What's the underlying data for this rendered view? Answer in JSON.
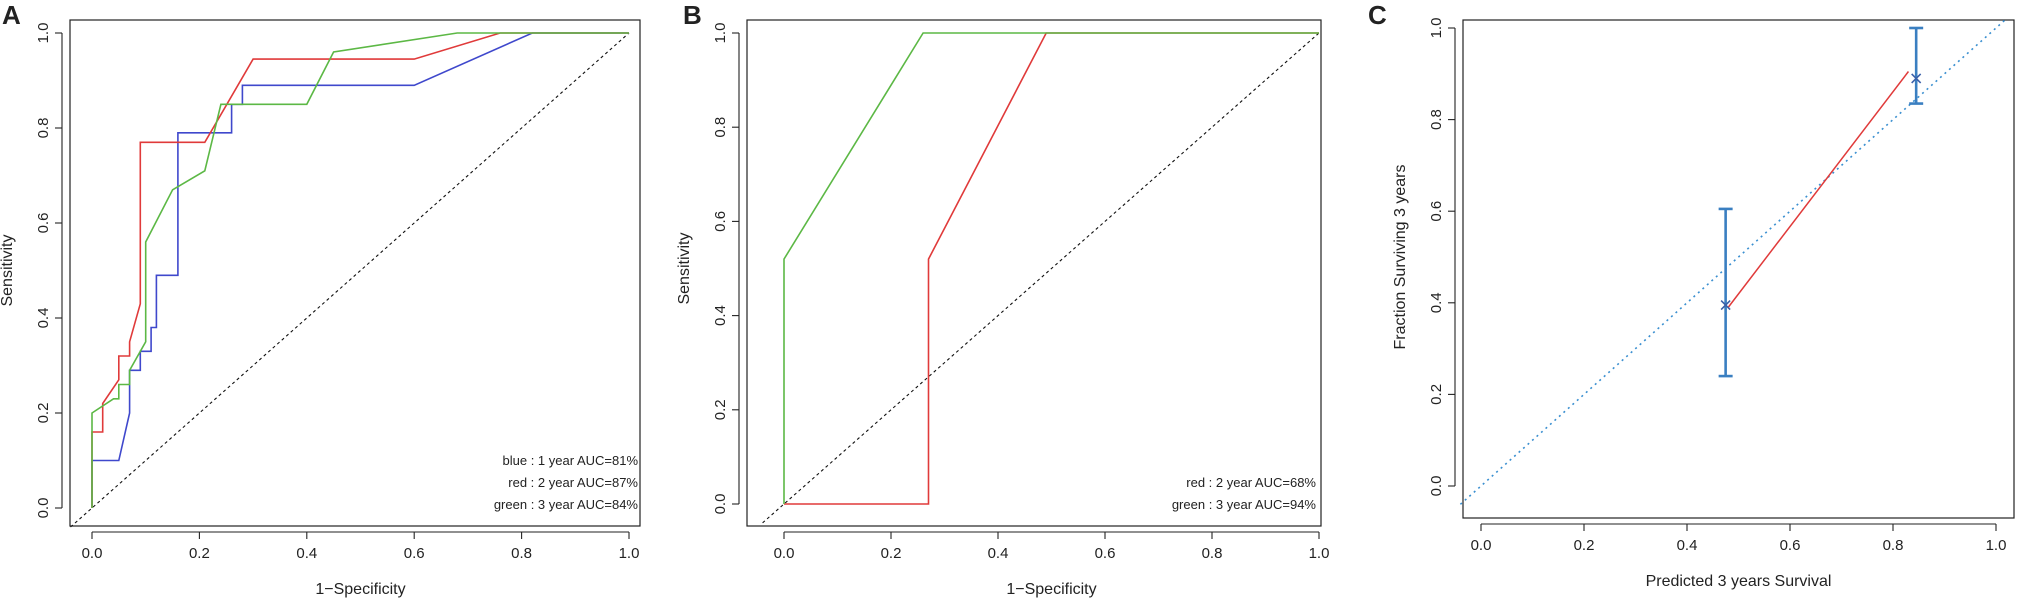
{
  "chart_data": [
    {
      "panel": "A",
      "type": "line",
      "xlabel": "1−Specificity",
      "ylabel": "Sensitivity",
      "xlim": [
        0,
        1
      ],
      "ylim": [
        0,
        1
      ],
      "xticks": [
        "0.0",
        "0.2",
        "0.4",
        "0.6",
        "0.8",
        "1.0"
      ],
      "yticks": [
        "0.0",
        "0.2",
        "0.4",
        "0.6",
        "0.8",
        "1.0"
      ],
      "grid": false,
      "legend_position": "bottom-right",
      "diagonal_reference": true,
      "legend": [
        "blue : 1 year AUC=81%",
        "red : 2 year AUC=87%",
        "green : 3 year AUC=84%"
      ],
      "series": [
        {
          "color": "#3f48cc",
          "x": [
            0,
            0,
            0.05,
            0.07,
            0.07,
            0.09,
            0.09,
            0.11,
            0.11,
            0.12,
            0.12,
            0.16,
            0.16,
            0.26,
            0.26,
            0.28,
            0.28,
            0.6,
            0.82,
            0.82,
            1
          ],
          "y": [
            0,
            0.1,
            0.1,
            0.2,
            0.29,
            0.29,
            0.33,
            0.33,
            0.38,
            0.38,
            0.49,
            0.49,
            0.79,
            0.79,
            0.85,
            0.85,
            0.89,
            0.89,
            1.0,
            1.0,
            1.0
          ]
        },
        {
          "color": "#e03a3a",
          "x": [
            0,
            0,
            0.02,
            0.02,
            0.05,
            0.05,
            0.07,
            0.07,
            0.09,
            0.09,
            0.21,
            0.3,
            0.6,
            0.76,
            1
          ],
          "y": [
            0,
            0.16,
            0.16,
            0.22,
            0.27,
            0.32,
            0.32,
            0.35,
            0.43,
            0.77,
            0.77,
            0.945,
            0.945,
            1.0,
            1.0
          ]
        },
        {
          "color": "#5cb845",
          "x": [
            0,
            0,
            0.04,
            0.05,
            0.05,
            0.07,
            0.07,
            0.1,
            0.1,
            0.15,
            0.21,
            0.24,
            0.4,
            0.45,
            0.68,
            1
          ],
          "y": [
            0,
            0.2,
            0.23,
            0.23,
            0.26,
            0.26,
            0.29,
            0.35,
            0.56,
            0.67,
            0.71,
            0.85,
            0.85,
            0.96,
            1.0,
            1.0
          ]
        }
      ]
    },
    {
      "panel": "B",
      "type": "line",
      "xlabel": "1−Specificity",
      "ylabel": "Sensitivity",
      "xlim": [
        0,
        1
      ],
      "ylim": [
        0,
        1
      ],
      "xticks": [
        "0.0",
        "0.2",
        "0.4",
        "0.6",
        "0.8",
        "1.0"
      ],
      "yticks": [
        "0.0",
        "0.2",
        "0.4",
        "0.6",
        "0.8",
        "1.0"
      ],
      "grid": false,
      "legend_position": "bottom-right",
      "diagonal_reference": true,
      "legend": [
        "red : 2 year AUC=68%",
        "green : 3 year AUC=94%"
      ],
      "series": [
        {
          "color": "#e03a3a",
          "x": [
            0,
            0.27,
            0.27,
            0.49,
            1
          ],
          "y": [
            0,
            0,
            0.52,
            1.0,
            1.0
          ]
        },
        {
          "color": "#5cb845",
          "x": [
            0,
            0,
            0.26,
            1
          ],
          "y": [
            0,
            0.52,
            1.0,
            1.0
          ]
        }
      ]
    },
    {
      "panel": "C",
      "type": "scatter",
      "xlabel": "Predicted  3 years Survival",
      "ylabel": "Fraction Surviving 3 years",
      "xlim": [
        0,
        1
      ],
      "ylim": [
        0,
        1
      ],
      "xticks": [
        "0.0",
        "0.2",
        "0.4",
        "0.6",
        "0.8",
        "1.0"
      ],
      "yticks": [
        "0.0",
        "0.2",
        "0.4",
        "0.6",
        "0.8",
        "1.0"
      ],
      "grid": false,
      "diagonal_reference": true,
      "points": [
        {
          "x": 0.475,
          "y": 0.395,
          "ymin": 0.24,
          "ymax": 0.605
        },
        {
          "x": 0.845,
          "y": 0.89,
          "ymin": 0.835,
          "ymax": 1.0
        }
      ],
      "calibration_line": {
        "color": "#e03a3a",
        "x": [
          0.48,
          0.83
        ],
        "y": [
          0.39,
          0.905
        ]
      },
      "marker_color": "#3a7fc1",
      "reference_color": "#3a8fd0"
    }
  ]
}
